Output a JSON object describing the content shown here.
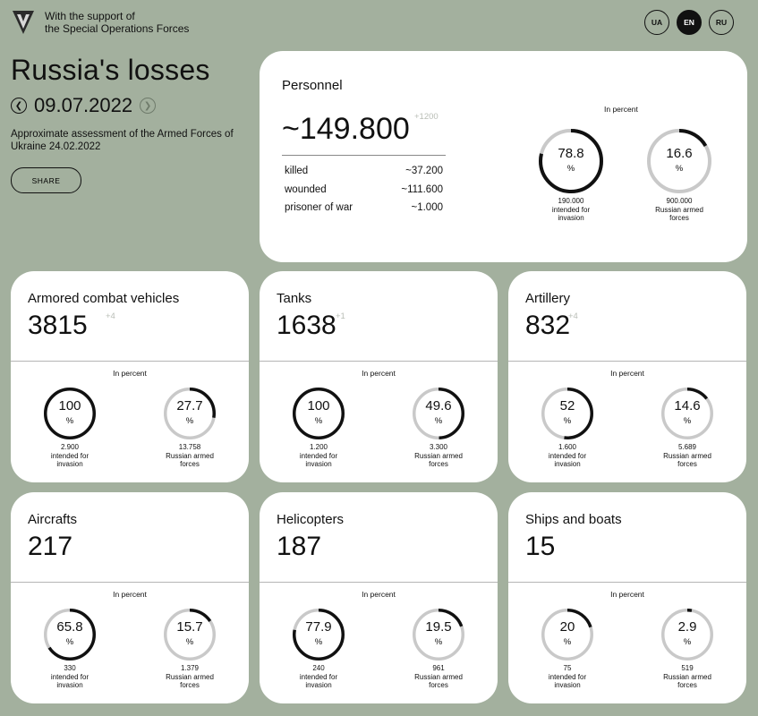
{
  "header": {
    "support_line1": "With the support of",
    "support_line2": "the Special Operations Forces",
    "languages": [
      "UA",
      "EN",
      "RU"
    ],
    "active_language": "EN"
  },
  "title": "Russia's losses",
  "date": "09.07.2022",
  "assessment": "Approximate assessment of the Armed Forces of Ukraine 24.02.2022",
  "share_label": "SHARE",
  "in_percent_label": "In percent",
  "personnel": {
    "label": "Personnel",
    "value": "~149.800",
    "delta": "+1200",
    "rows": [
      {
        "label": "killed",
        "value": "~37.200"
      },
      {
        "label": "wounded",
        "value": "~111.600"
      },
      {
        "label": "prisoner of war",
        "value": "~1.000"
      }
    ],
    "gauges": [
      {
        "percent": "78.8",
        "unit": "%",
        "fraction": 0.788,
        "base": "190.000",
        "caption1": "intended for",
        "caption2": "invasion"
      },
      {
        "percent": "16.6",
        "unit": "%",
        "fraction": 0.166,
        "base": "900.000",
        "caption1": "Russian armed",
        "caption2": "forces"
      }
    ]
  },
  "categories": [
    {
      "label": "Armored combat vehicles",
      "value": "3815",
      "delta": "+4",
      "gauges": [
        {
          "percent": "100",
          "unit": "%",
          "fraction": 1.0,
          "base": "2.900",
          "caption1": "intended for",
          "caption2": "invasion"
        },
        {
          "percent": "27.7",
          "unit": "%",
          "fraction": 0.277,
          "base": "13.758",
          "caption1": "Russian armed",
          "caption2": "forces"
        }
      ]
    },
    {
      "label": "Tanks",
      "value": "1638",
      "delta": "+1",
      "gauges": [
        {
          "percent": "100",
          "unit": "%",
          "fraction": 1.0,
          "base": "1.200",
          "caption1": "intended for",
          "caption2": "invasion"
        },
        {
          "percent": "49.6",
          "unit": "%",
          "fraction": 0.496,
          "base": "3.300",
          "caption1": "Russian armed",
          "caption2": "forces"
        }
      ]
    },
    {
      "label": "Artillery",
      "value": "832",
      "delta": "+4",
      "gauges": [
        {
          "percent": "52",
          "unit": "%",
          "fraction": 0.52,
          "base": "1.600",
          "caption1": "intended for",
          "caption2": "invasion"
        },
        {
          "percent": "14.6",
          "unit": "%",
          "fraction": 0.146,
          "base": "5.689",
          "caption1": "Russian armed",
          "caption2": "forces"
        }
      ]
    },
    {
      "label": "Aircrafts",
      "value": "217",
      "delta": "",
      "gauges": [
        {
          "percent": "65.8",
          "unit": "%",
          "fraction": 0.658,
          "base": "330",
          "caption1": "intended for",
          "caption2": "invasion"
        },
        {
          "percent": "15.7",
          "unit": "%",
          "fraction": 0.157,
          "base": "1.379",
          "caption1": "Russian armed",
          "caption2": "forces"
        }
      ]
    },
    {
      "label": "Helicopters",
      "value": "187",
      "delta": "",
      "gauges": [
        {
          "percent": "77.9",
          "unit": "%",
          "fraction": 0.779,
          "base": "240",
          "caption1": "intended for",
          "caption2": "invasion"
        },
        {
          "percent": "19.5",
          "unit": "%",
          "fraction": 0.195,
          "base": "961",
          "caption1": "Russian armed",
          "caption2": "forces"
        }
      ]
    },
    {
      "label": "Ships and boats",
      "value": "15",
      "delta": "",
      "gauges": [
        {
          "percent": "20",
          "unit": "%",
          "fraction": 0.2,
          "base": "75",
          "caption1": "intended for",
          "caption2": "invasion"
        },
        {
          "percent": "2.9",
          "unit": "%",
          "fraction": 0.029,
          "base": "519",
          "caption1": "Russian armed",
          "caption2": "forces"
        }
      ]
    }
  ],
  "colors": {
    "background": "#a3b09e",
    "card": "#ffffff",
    "ring_track": "#c9c9c9",
    "ring_fill": "#111111",
    "delta": "#b9beb6"
  }
}
